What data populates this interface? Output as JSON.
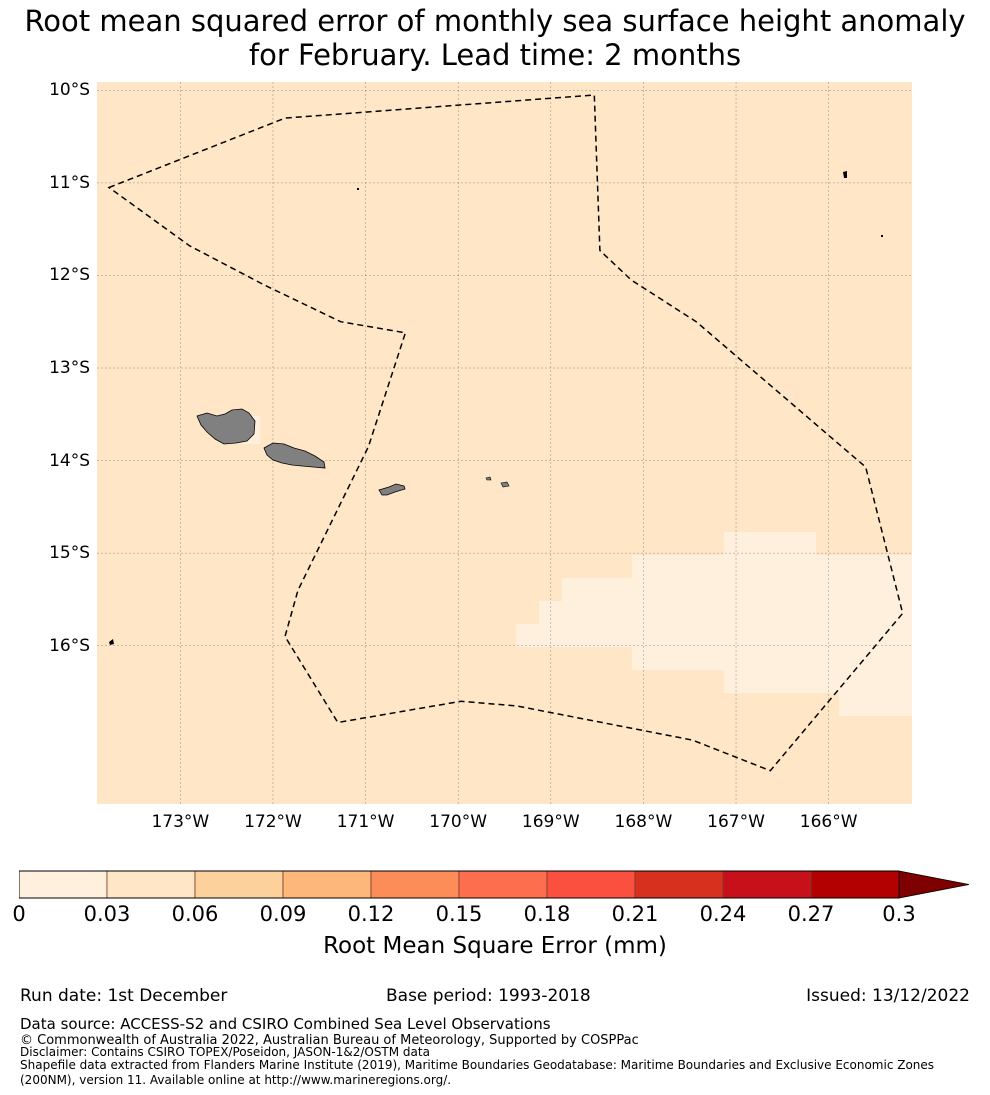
{
  "title_line1": "Root mean squared error of monthly sea surface height anomaly",
  "title_line2": "for February. Lead time: 2 months",
  "map": {
    "lat_labels": [
      "10°S",
      "11°S",
      "12°S",
      "13°S",
      "14°S",
      "15°S",
      "16°S"
    ],
    "lon_labels": [
      "173°W",
      "172°W",
      "171°W",
      "170°W",
      "169°W",
      "168°W",
      "167°W",
      "166°W"
    ],
    "lat_values": [
      -10,
      -11,
      -12,
      -13,
      -14,
      -15,
      -16
    ],
    "lon_values": [
      -173,
      -172,
      -171,
      -170,
      -169,
      -168,
      -167,
      -166
    ],
    "extent": {
      "lon_min": -173.9,
      "lon_max": -165.1,
      "lat_min": -17.71,
      "lat_max": -9.91
    },
    "ocean_color": "#fee6c6",
    "low_error_color": "#fff0de",
    "land_color": "#808080",
    "boundary_style": "dashed black line",
    "boundary": [
      [
        -173.77,
        -11.05
      ],
      [
        -171.87,
        -10.3
      ],
      [
        -168.53,
        -10.05
      ],
      [
        -168.47,
        -11.73
      ],
      [
        -168.13,
        -12.05
      ],
      [
        -167.43,
        -12.5
      ],
      [
        -165.6,
        -14.07
      ],
      [
        -165.2,
        -15.65
      ],
      [
        -166.63,
        -17.35
      ],
      [
        -167.47,
        -17.02
      ],
      [
        -169.37,
        -16.65
      ],
      [
        -169.97,
        -16.6
      ],
      [
        -171.3,
        -16.83
      ],
      [
        -171.87,
        -15.9
      ],
      [
        -171.73,
        -15.4
      ],
      [
        -170.97,
        -13.85
      ],
      [
        -170.57,
        -12.62
      ],
      [
        -171.27,
        -12.5
      ],
      [
        -172.1,
        -12.1
      ],
      [
        -172.9,
        -11.68
      ]
    ]
  },
  "colorbar": {
    "ticks": [
      "0",
      "0.03",
      "0.06",
      "0.09",
      "0.12",
      "0.15",
      "0.18",
      "0.21",
      "0.24",
      "0.27",
      "0.3"
    ],
    "colors": [
      "#fff0de",
      "#fee6c6",
      "#fdd19b",
      "#fdb77a",
      "#fc8d59",
      "#fd6e4f",
      "#fb503f",
      "#d7301f",
      "#c8101a",
      "#b30000",
      "#7f0000"
    ],
    "extend": "max",
    "label": "Root Mean Square Error (mm)"
  },
  "footer": {
    "run_date": "Run date: 1st December",
    "base_period": "Base period: 1993-2018",
    "issued": "Issued: 13/12/2022",
    "data_source": "Data source: ACCESS-S2 and CSIRO Combined Sea Level Observations",
    "copyright": "© Commonwealth of Australia 2022, Australian Bureau of Meteorology, Supported by COSPPac",
    "disclaimer": "Disclaimer: Contains CSIRO TOPEX/Poseidon, JASON-1&2/OSTM data",
    "shapefile": "Shapefile data extracted from Flanders Marine Institute (2019), Maritime Boundaries Geodatabase: Maritime Boundaries and Exclusive Economic Zones (200NM), version 11. Available online at http://www.marineregions.org/."
  }
}
